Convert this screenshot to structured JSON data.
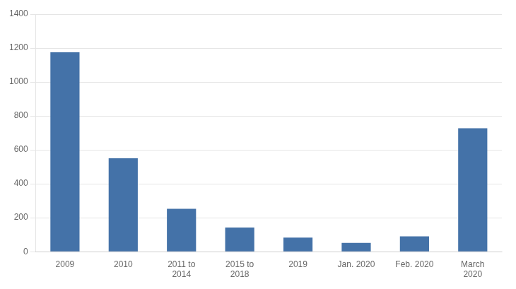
{
  "chart_data": {
    "type": "bar",
    "categories": [
      "2009",
      "2010",
      "2011 to\n2014",
      "2015 to\n2018",
      "2019",
      "Jan. 2020",
      "Feb. 2020",
      "March\n2020"
    ],
    "values": [
      1175,
      550,
      253,
      142,
      83,
      52,
      90,
      727
    ],
    "color": "#4472a8",
    "ylim": [
      0,
      1400
    ],
    "yticks": [
      0,
      200,
      400,
      600,
      800,
      1000,
      1200,
      1400
    ],
    "grid": true
  }
}
